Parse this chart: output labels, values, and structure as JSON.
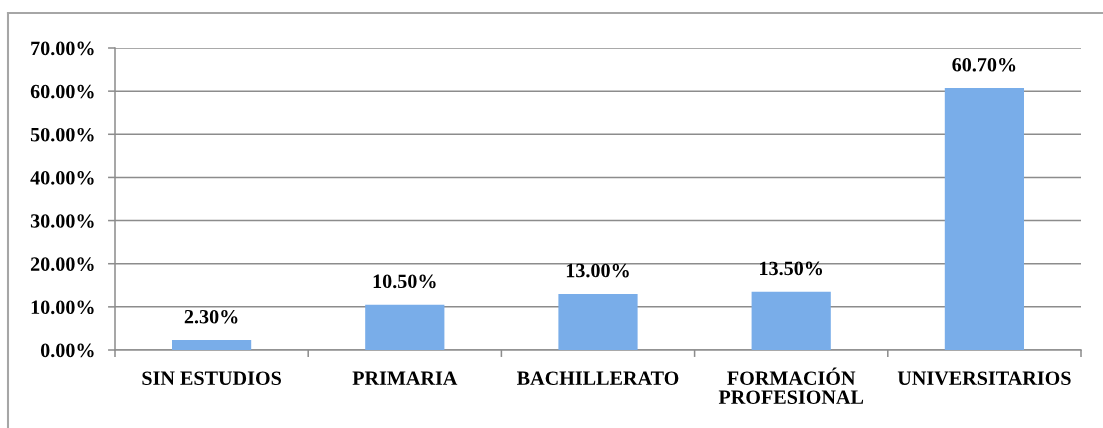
{
  "chart_data": {
    "type": "bar",
    "categories": [
      "SIN ESTUDIOS",
      "PRIMARIA",
      "BACHILLERATO",
      "FORMACIÓN PROFESIONAL",
      "UNIVERSITARIOS"
    ],
    "values": [
      2.3,
      10.5,
      13.0,
      13.5,
      60.7
    ],
    "color": "#79ade9",
    "value_labels": [
      "2.30%",
      "10.50%",
      "13.00%",
      "13.50%",
      "60.70%"
    ],
    "ylim": [
      0,
      70
    ],
    "yticks": [
      {
        "value": 0,
        "label": "0.00%"
      },
      {
        "value": 10,
        "label": "10.00%"
      },
      {
        "value": 20,
        "label": "20.00%"
      },
      {
        "value": 30,
        "label": "30.00%"
      },
      {
        "value": 40,
        "label": "40.00%"
      },
      {
        "value": 50,
        "label": "50.00%"
      },
      {
        "value": 60,
        "label": "60.00%"
      },
      {
        "value": 70,
        "label": "70.00%"
      }
    ],
    "grid": "y"
  }
}
